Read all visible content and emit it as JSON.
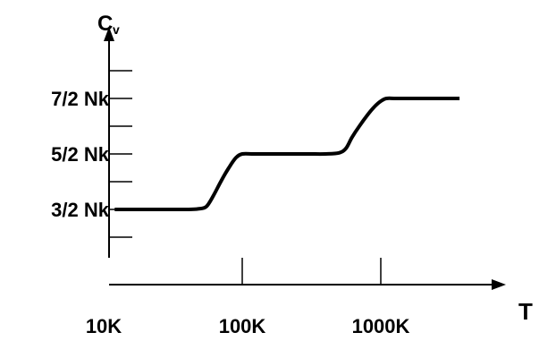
{
  "chart_data": {
    "type": "line",
    "x_scale": "log",
    "x_ticks": [
      {
        "value": 10,
        "label": "10K"
      },
      {
        "value": 100,
        "label": "100K"
      },
      {
        "value": 1000,
        "label": "1000K"
      }
    ],
    "y_ticks": [
      {
        "value": 1.5,
        "label": "3/2 Nk"
      },
      {
        "value": 2.5,
        "label": "5/2 Nk"
      },
      {
        "value": 3.5,
        "label": "7/2 Nk"
      }
    ],
    "y_minor_ticks": [
      1,
      2,
      3,
      4
    ],
    "ylim": [
      0.75,
      4.0
    ],
    "y_axis_label": {
      "main": "C",
      "sub": "v"
    },
    "x_axis_label": "T",
    "grid": false,
    "series": [
      {
        "x": [
          12,
          20,
          30,
          40,
          48,
          55,
          62,
          70,
          80,
          90,
          100,
          120,
          150,
          200,
          300,
          400,
          500,
          560,
          620,
          700,
          800,
          900,
          1000,
          1100,
          1300,
          2000,
          3000,
          3700
        ],
        "y": [
          1.5,
          1.5,
          1.5,
          1.5,
          1.51,
          1.55,
          1.75,
          2.0,
          2.25,
          2.43,
          2.5,
          2.5,
          2.5,
          2.5,
          2.5,
          2.5,
          2.52,
          2.6,
          2.8,
          3.0,
          3.2,
          3.35,
          3.45,
          3.5,
          3.5,
          3.5,
          3.5,
          3.5
        ]
      }
    ]
  }
}
